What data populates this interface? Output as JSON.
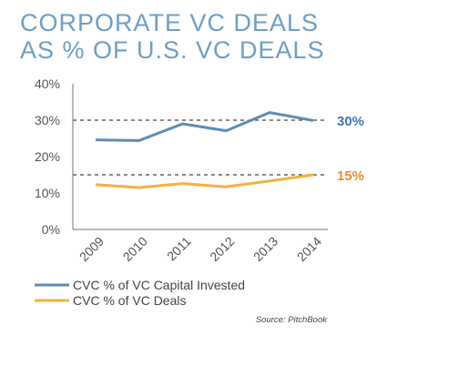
{
  "title_lines": [
    "CORPORATE VC DEALS",
    "AS % OF U.S. VC DEALS"
  ],
  "source": "Source: PitchBook",
  "colors": {
    "title": "#6e9ec5",
    "capital": "#5b8db3",
    "deals": "#f5b13d",
    "capital_label": "#3f76b1",
    "deals_label": "#ee8a35"
  },
  "chart_data": {
    "type": "line",
    "x": [
      "2009",
      "2010",
      "2011",
      "2012",
      "2013",
      "2014"
    ],
    "ylim": [
      0,
      40
    ],
    "yticks": [
      "0%",
      "10%",
      "20%",
      "30%",
      "40%"
    ],
    "grid": false,
    "series": [
      {
        "name": "CVC % of VC Capital Invested",
        "values": [
          24.6,
          24.4,
          29.0,
          27.1,
          32.1,
          29.9
        ],
        "end_label": "30%"
      },
      {
        "name": "CVC % of VC Deals",
        "values": [
          12.3,
          11.5,
          12.6,
          11.7,
          13.3,
          15.0
        ],
        "end_label": "15%"
      }
    ],
    "reference_lines": [
      30,
      15
    ],
    "legend_position": "bottom-left"
  }
}
